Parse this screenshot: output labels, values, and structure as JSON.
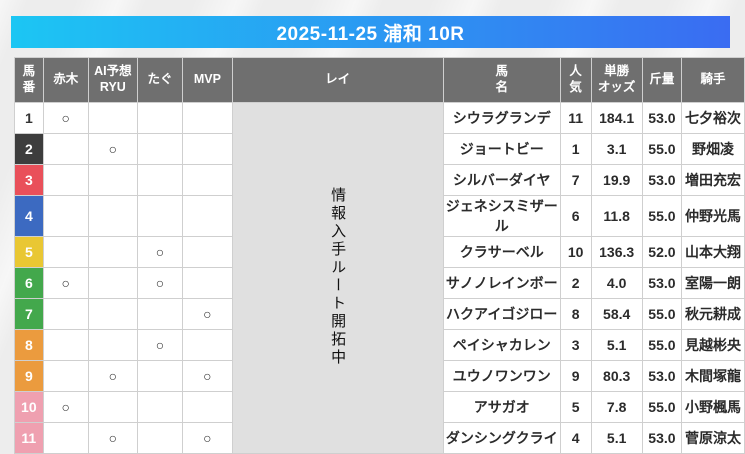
{
  "title": {
    "text": "2025-11-25 浦和 10R",
    "gradient_start": "#1cc6f3",
    "gradient_end": "#3a6cf2"
  },
  "rei_column": {
    "text": "情報入手ルート開拓中",
    "background": "#e0e0e0"
  },
  "table": {
    "header_background": "#6f6f6f",
    "headers": [
      {
        "id": "umaban",
        "label": "馬\n番"
      },
      {
        "id": "akagi",
        "label": "赤木"
      },
      {
        "id": "ai-yoso-ryu",
        "label": "AI予想\nRYU"
      },
      {
        "id": "tagu",
        "label": "たぐ"
      },
      {
        "id": "mvp",
        "label": "MVP"
      },
      {
        "id": "rei",
        "label": "レイ"
      },
      {
        "id": "bamei",
        "label": "馬\n名"
      },
      {
        "id": "ninki",
        "label": "人\n気"
      },
      {
        "id": "tansho-odds",
        "label": "単勝\nオッズ"
      },
      {
        "id": "kinryo",
        "label": "斤量"
      },
      {
        "id": "kishu",
        "label": "騎手"
      }
    ],
    "rows": [
      {
        "num": "1",
        "num_bg": "#ffffff",
        "num_color": "#333333",
        "akagi": "○",
        "ai_ryu": "",
        "tagu": "",
        "mvp": "",
        "name": "シウラグランデ",
        "ninki": "11",
        "odds": "184.1",
        "kinryo": "53.0",
        "jockey": "七夕裕次"
      },
      {
        "num": "2",
        "num_bg": "#3d3d3d",
        "num_color": "#ffffff",
        "akagi": "",
        "ai_ryu": "○",
        "tagu": "",
        "mvp": "",
        "name": "ジョートビー",
        "ninki": "1",
        "odds": "3.1",
        "kinryo": "55.0",
        "jockey": "野畑凌"
      },
      {
        "num": "3",
        "num_bg": "#e9505a",
        "num_color": "#ffffff",
        "akagi": "",
        "ai_ryu": "",
        "tagu": "",
        "mvp": "",
        "name": "シルバーダイヤ",
        "ninki": "7",
        "odds": "19.9",
        "kinryo": "53.0",
        "jockey": "増田充宏"
      },
      {
        "num": "4",
        "num_bg": "#3c6ac1",
        "num_color": "#ffffff",
        "akagi": "",
        "ai_ryu": "",
        "tagu": "",
        "mvp": "",
        "name": "ジェネシスミザール",
        "ninki": "6",
        "odds": "11.8",
        "kinryo": "55.0",
        "jockey": "仲野光馬"
      },
      {
        "num": "5",
        "num_bg": "#e9c733",
        "num_color": "#ffffff",
        "akagi": "",
        "ai_ryu": "",
        "tagu": "○",
        "mvp": "",
        "name": "クラサーベル",
        "ninki": "10",
        "odds": "136.3",
        "kinryo": "52.0",
        "jockey": "山本大翔"
      },
      {
        "num": "6",
        "num_bg": "#43a84c",
        "num_color": "#ffffff",
        "akagi": "○",
        "ai_ryu": "",
        "tagu": "○",
        "mvp": "",
        "name": "サノノレインボー",
        "ninki": "2",
        "odds": "4.0",
        "kinryo": "53.0",
        "jockey": "室陽一朗"
      },
      {
        "num": "7",
        "num_bg": "#43a84c",
        "num_color": "#ffffff",
        "akagi": "",
        "ai_ryu": "",
        "tagu": "",
        "mvp": "○",
        "name": "ハクアイゴジロー",
        "ninki": "8",
        "odds": "58.4",
        "kinryo": "55.0",
        "jockey": "秋元耕成"
      },
      {
        "num": "8",
        "num_bg": "#eb9b3e",
        "num_color": "#ffffff",
        "akagi": "",
        "ai_ryu": "",
        "tagu": "○",
        "mvp": "",
        "name": "ペイシャカレン",
        "ninki": "3",
        "odds": "5.1",
        "kinryo": "55.0",
        "jockey": "見越彬央"
      },
      {
        "num": "9",
        "num_bg": "#eb9b3e",
        "num_color": "#ffffff",
        "akagi": "",
        "ai_ryu": "○",
        "tagu": "",
        "mvp": "○",
        "name": "ユウノワンワン",
        "ninki": "9",
        "odds": "80.3",
        "kinryo": "53.0",
        "jockey": "木間塚龍"
      },
      {
        "num": "10",
        "num_bg": "#efa0b0",
        "num_color": "#ffffff",
        "akagi": "○",
        "ai_ryu": "",
        "tagu": "",
        "mvp": "",
        "name": "アサガオ",
        "ninki": "5",
        "odds": "7.8",
        "kinryo": "55.0",
        "jockey": "小野楓馬"
      },
      {
        "num": "11",
        "num_bg": "#efa0b0",
        "num_color": "#ffffff",
        "akagi": "",
        "ai_ryu": "○",
        "tagu": "",
        "mvp": "○",
        "name": "ダンシングクライ",
        "ninki": "4",
        "odds": "5.1",
        "kinryo": "53.0",
        "jockey": "菅原涼太"
      }
    ]
  }
}
